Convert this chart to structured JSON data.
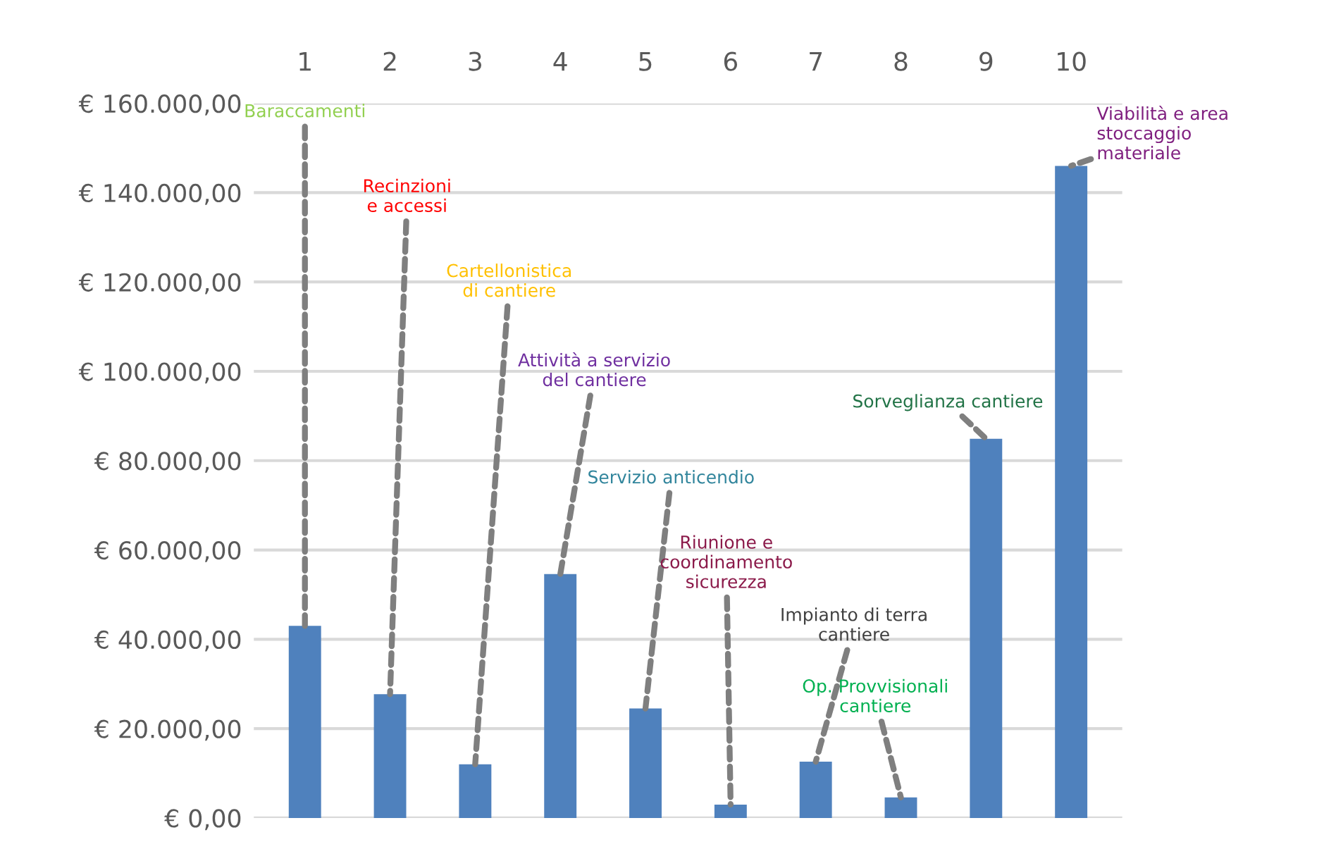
{
  "chart_data": {
    "type": "bar",
    "categories": [
      "1",
      "2",
      "3",
      "4",
      "5",
      "6",
      "7",
      "8",
      "9",
      "10"
    ],
    "values": [
      43000,
      27700,
      12000,
      54600,
      24500,
      3000,
      12600,
      4600,
      84900,
      146000
    ],
    "color": "#4f81bd",
    "ylim": [
      0,
      160000
    ],
    "yticks": [
      {
        "value": 0,
        "label": "€ 0,00"
      },
      {
        "value": 20000,
        "label": "€ 20.000,00"
      },
      {
        "value": 40000,
        "label": "€ 40.000,00"
      },
      {
        "value": 60000,
        "label": "€ 60.000,00"
      },
      {
        "value": 80000,
        "label": "€ 80.000,00"
      },
      {
        "value": 100000,
        "label": "€ 100.000,00"
      },
      {
        "value": 120000,
        "label": "€ 120.000,00"
      },
      {
        "value": 140000,
        "label": "€ 140.000,00"
      },
      {
        "value": 160000,
        "label": "€ 160.000,00"
      }
    ],
    "grid": "y",
    "annotations": [
      {
        "text": "Baraccamenti",
        "x": "1",
        "y": 43000
      },
      {
        "text": "Recinzioni\ne accessi",
        "x": "2",
        "y": 27700
      },
      {
        "text": "Cartellonistica\ndi cantiere",
        "x": "3",
        "y": 12000
      },
      {
        "text": "Attività a servizio\ndel cantiere",
        "x": "4",
        "y": 54600
      },
      {
        "text": "Servizio anticendio",
        "x": "5",
        "y": 24500
      },
      {
        "text": "Riunione e\ncoordinamento\nsicurezza",
        "x": "6",
        "y": 3000
      },
      {
        "text": "Impianto di terra\ncantiere",
        "x": "7",
        "y": 12600
      },
      {
        "text": "Op. Provvisionali\ncantiere",
        "x": "8",
        "y": 4600
      },
      {
        "text": "Sorveglianza cantiere",
        "x": "9",
        "y": 84900
      },
      {
        "text": "Viabilità e area\nstoccaggio\nmateriale",
        "x": "10",
        "y": 146000
      }
    ]
  }
}
